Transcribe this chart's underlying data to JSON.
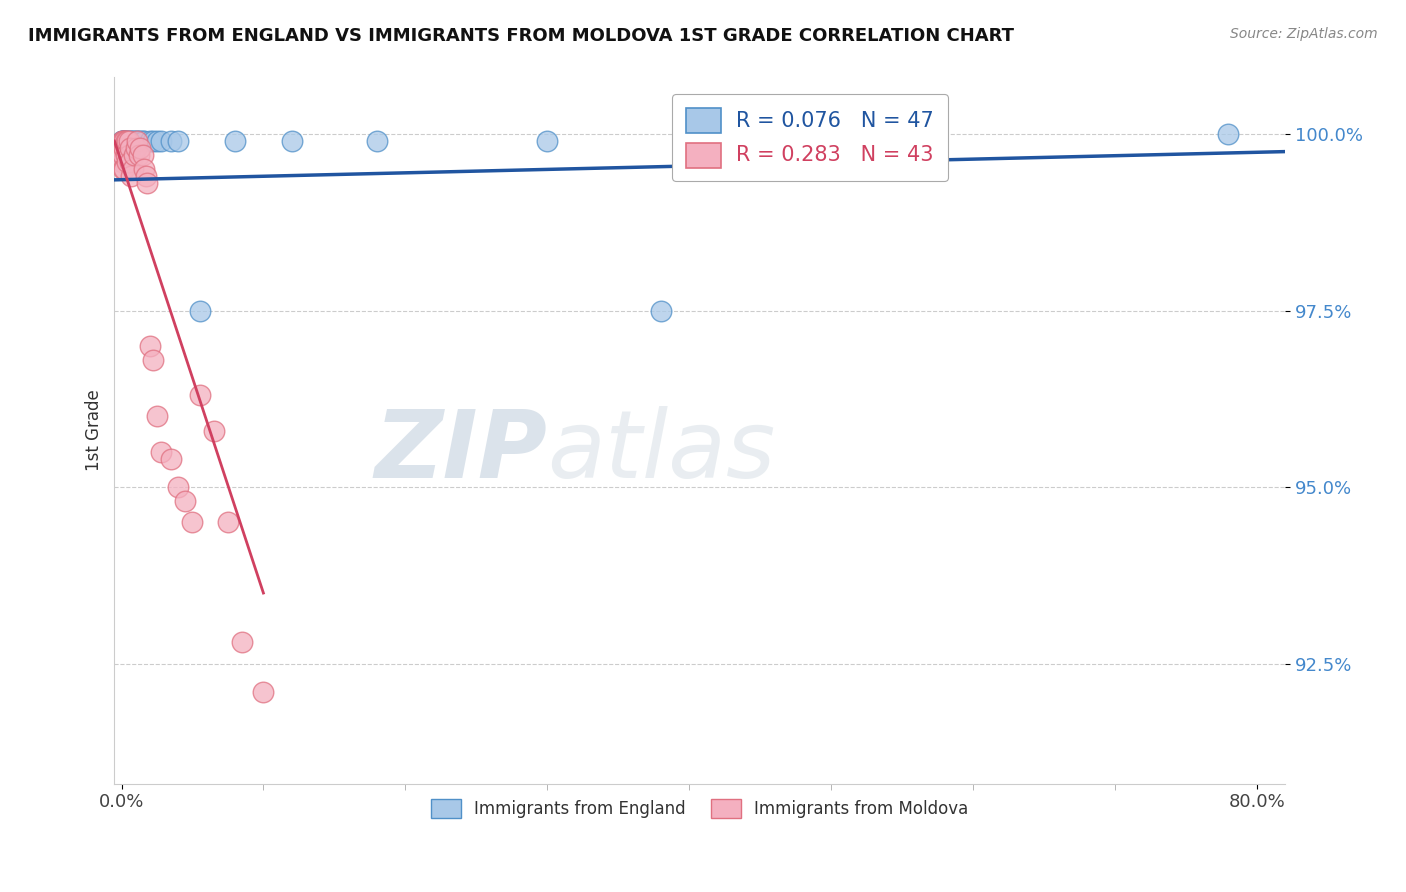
{
  "title": "IMMIGRANTS FROM ENGLAND VS IMMIGRANTS FROM MOLDOVA 1ST GRADE CORRELATION CHART",
  "source": "Source: ZipAtlas.com",
  "ylabel": "1st Grade",
  "xlim": [
    -0.005,
    0.82
  ],
  "ylim": [
    0.908,
    1.008
  ],
  "y_ticks": [
    0.925,
    0.95,
    0.975,
    1.0
  ],
  "y_tick_labels": [
    "92.5%",
    "95.0%",
    "97.5%",
    "100.0%"
  ],
  "x_tick_pos": [
    0.0,
    0.8
  ],
  "x_tick_labels": [
    "0.0%",
    "80.0%"
  ],
  "england_R": 0.076,
  "england_N": 47,
  "moldova_R": 0.283,
  "moldova_N": 43,
  "england_color": "#a8c8e8",
  "moldova_color": "#f4b0c0",
  "england_edge_color": "#5090c8",
  "moldova_edge_color": "#e07080",
  "england_line_color": "#2055a0",
  "moldova_line_color": "#d04060",
  "legend_england": "R = 0.076   N = 47",
  "legend_moldova": "R = 0.283   N = 43",
  "watermark_zip": "ZIP",
  "watermark_atlas": "atlas",
  "bottom_legend_england": "Immigrants from England",
  "bottom_legend_moldova": "Immigrants from Moldova",
  "england_x": [
    0.0,
    0.0,
    0.0,
    0.0,
    0.0,
    0.001,
    0.001,
    0.001,
    0.002,
    0.002,
    0.002,
    0.003,
    0.003,
    0.003,
    0.003,
    0.004,
    0.004,
    0.005,
    0.005,
    0.006,
    0.006,
    0.007,
    0.007,
    0.008,
    0.008,
    0.009,
    0.009,
    0.01,
    0.01,
    0.011,
    0.012,
    0.013,
    0.015,
    0.016,
    0.02,
    0.022,
    0.025,
    0.028,
    0.035,
    0.04,
    0.055,
    0.08,
    0.12,
    0.18,
    0.3,
    0.38,
    0.78
  ],
  "england_y": [
    0.999,
    0.999,
    0.998,
    0.998,
    0.997,
    0.999,
    0.999,
    0.998,
    0.999,
    0.999,
    0.998,
    0.999,
    0.999,
    0.998,
    0.997,
    0.999,
    0.998,
    0.999,
    0.998,
    0.999,
    0.998,
    0.999,
    0.998,
    0.999,
    0.998,
    0.999,
    0.998,
    0.999,
    0.998,
    0.999,
    0.999,
    0.999,
    0.999,
    0.999,
    0.999,
    0.999,
    0.999,
    0.999,
    0.999,
    0.999,
    0.975,
    0.999,
    0.999,
    0.999,
    0.999,
    0.975,
    1.0
  ],
  "moldova_x": [
    0.0,
    0.0,
    0.0,
    0.0,
    0.001,
    0.001,
    0.001,
    0.001,
    0.002,
    0.002,
    0.002,
    0.003,
    0.003,
    0.004,
    0.004,
    0.005,
    0.005,
    0.006,
    0.006,
    0.007,
    0.008,
    0.009,
    0.01,
    0.011,
    0.012,
    0.013,
    0.015,
    0.016,
    0.017,
    0.018,
    0.02,
    0.022,
    0.025,
    0.028,
    0.035,
    0.04,
    0.045,
    0.05,
    0.055,
    0.065,
    0.075,
    0.085,
    0.1
  ],
  "moldova_y": [
    0.999,
    0.998,
    0.997,
    0.996,
    0.999,
    0.998,
    0.997,
    0.995,
    0.999,
    0.998,
    0.995,
    0.999,
    0.997,
    0.999,
    0.996,
    0.999,
    0.997,
    0.998,
    0.996,
    0.994,
    0.995,
    0.997,
    0.998,
    0.999,
    0.997,
    0.998,
    0.997,
    0.995,
    0.994,
    0.993,
    0.97,
    0.968,
    0.96,
    0.955,
    0.954,
    0.95,
    0.948,
    0.945,
    0.963,
    0.958,
    0.945,
    0.928,
    0.921
  ],
  "eng_line_x0": -0.005,
  "eng_line_x1": 0.82,
  "eng_line_y0": 0.9935,
  "eng_line_y1": 0.9975,
  "mol_line_x0": -0.005,
  "mol_line_x1": 0.1,
  "mol_line_y0": 0.999,
  "mol_line_y1": 0.935
}
